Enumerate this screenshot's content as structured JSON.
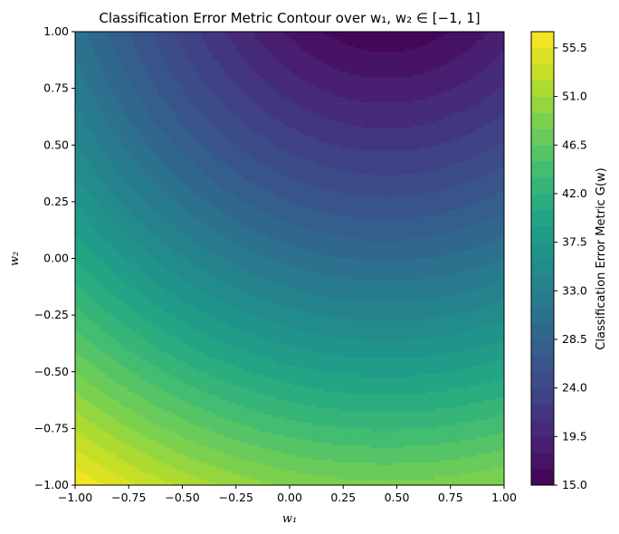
{
  "chart_data": {
    "type": "contour",
    "title": "Classification Error Metric Contour over w₁, w₂ ∈ [−1, 1]",
    "xlabel": "w₁",
    "ylabel": "w₂",
    "xlim": [
      -1.0,
      1.0
    ],
    "ylim": [
      -1.0,
      1.0
    ],
    "x_ticks": [
      "−1.00",
      "−0.75",
      "−0.50",
      "−0.25",
      "0.00",
      "0.25",
      "0.50",
      "0.75",
      "1.00"
    ],
    "y_ticks": [
      "−1.00",
      "−0.75",
      "−0.50",
      "−0.25",
      "0.00",
      "0.25",
      "0.50",
      "0.75",
      "1.00"
    ],
    "x_tick_values": [
      -1,
      -0.75,
      -0.5,
      -0.25,
      0,
      0.25,
      0.5,
      0.75,
      1
    ],
    "y_tick_values": [
      -1,
      -0.75,
      -0.5,
      -0.25,
      0,
      0.25,
      0.5,
      0.75,
      1
    ],
    "colormap": "viridis",
    "colorbar": {
      "label": "Classification Error Metric G(w)",
      "range": [
        15.0,
        57.0
      ],
      "tick_values": [
        15.0,
        19.5,
        24.0,
        28.5,
        33.0,
        37.5,
        42.0,
        46.5,
        51.0,
        55.5
      ],
      "tick_labels": [
        "15.0",
        "19.5",
        "24.0",
        "28.5",
        "33.0",
        "37.5",
        "42.0",
        "46.5",
        "51.0",
        "55.5"
      ],
      "level_step": 1.5
    },
    "surface": {
      "description_of_levels": "minimum near w1=0.45, w2=1.0 (~15); maximum at w1=-1, w2=-1 (~57)",
      "min_point": [
        0.45,
        1.0
      ],
      "min_value": 15.4,
      "max_value": 57.0
    }
  }
}
